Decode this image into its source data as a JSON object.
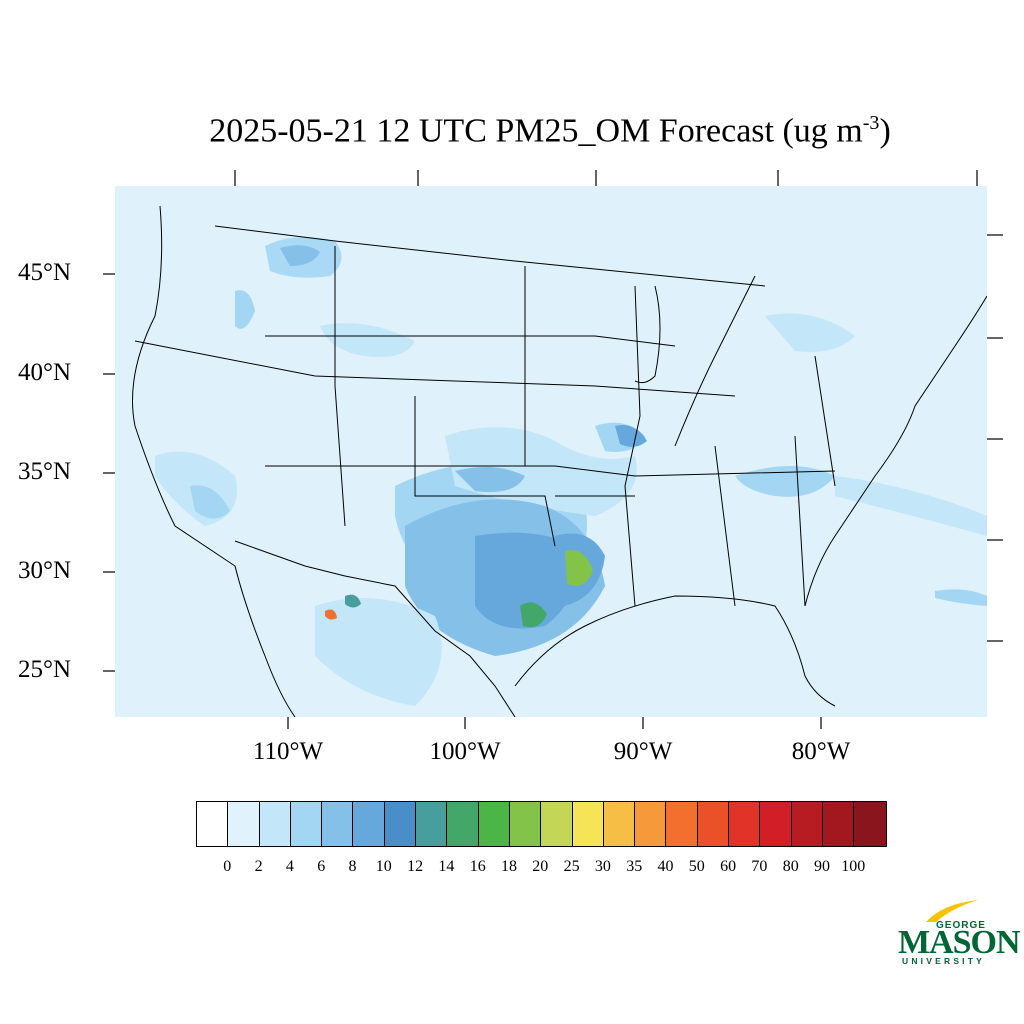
{
  "title": {
    "main": "2025-05-21 12 UTC PM25_OM Forecast (ug m",
    "exponent": "-3",
    "close": ")"
  },
  "lat_labels": [
    "45°N",
    "40°N",
    "35°N",
    "30°N",
    "25°N"
  ],
  "lon_labels": [
    "110°W",
    "100°W",
    "90°W",
    "80°W"
  ],
  "colorbar": {
    "labels": [
      "0",
      "2",
      "4",
      "6",
      "8",
      "10",
      "12",
      "14",
      "16",
      "18",
      "20",
      "25",
      "30",
      "35",
      "40",
      "50",
      "60",
      "70",
      "80",
      "90",
      "100"
    ],
    "colors": [
      "#ffffff",
      "#e0f3fc",
      "#c3e6f8",
      "#a3d6f3",
      "#85c0e8",
      "#66a8dc",
      "#4a8ec9",
      "#479e9d",
      "#44a76a",
      "#4bb547",
      "#84c34a",
      "#c3d655",
      "#f5e556",
      "#f7be46",
      "#f5993b",
      "#f26f2e",
      "#ea5129",
      "#df3427",
      "#d21f27",
      "#b81c23",
      "#a3181f",
      "#8b151c"
    ]
  },
  "logo": {
    "line1": "GEORGE",
    "line2": "MASON",
    "line3": "UNIVERSITY"
  },
  "colors": {
    "background_field": "#dff1fa",
    "boundary": "#000000"
  }
}
